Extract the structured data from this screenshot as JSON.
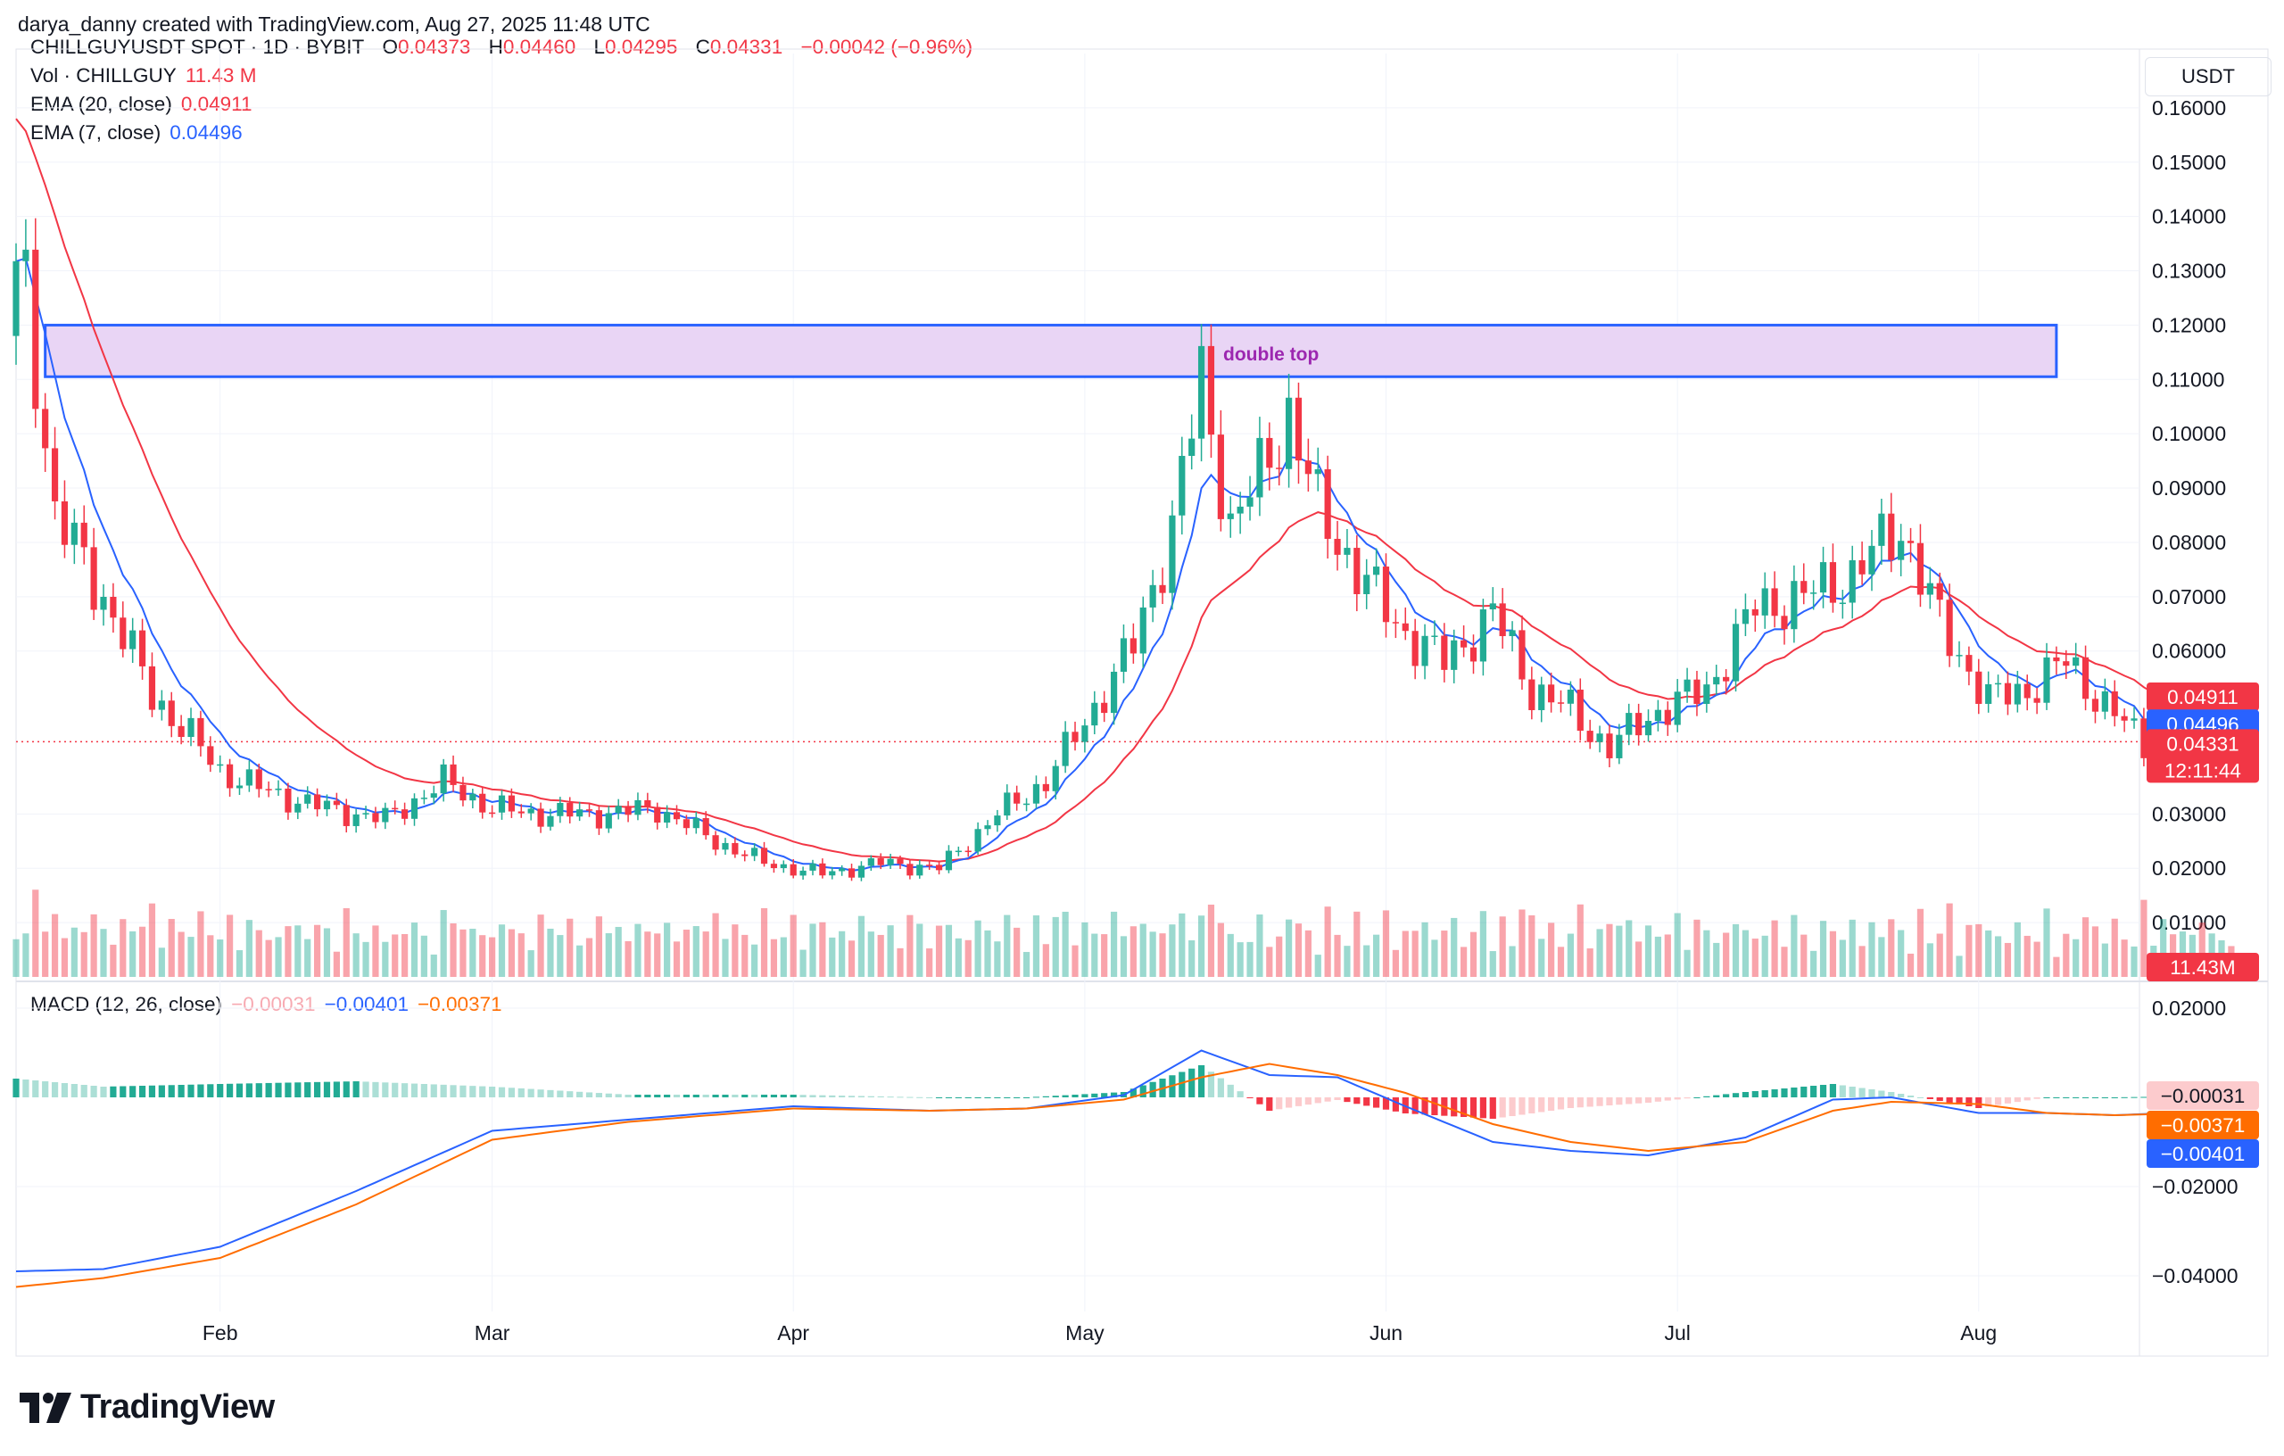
{
  "credit": "darya_danny created with TradingView.com, Aug 27, 2025 11:48 UTC",
  "legend": {
    "symbol": "CHILLGUYUSDT SPOT · 1D · BYBIT",
    "o_label": "O",
    "o": "0.04373",
    "h_label": "H",
    "h": "0.04460",
    "l_label": "L",
    "l": "0.04295",
    "c_label": "C",
    "c": "0.04331",
    "change": "−0.00042 (−0.96%)",
    "vol_label": "Vol · CHILLGUY",
    "vol": "11.43 M",
    "ema20_label": "EMA (20, close)",
    "ema20": "0.04911",
    "ema7_label": "EMA (7, close)",
    "ema7": "0.04496",
    "macd_label": "MACD (12, 26, close)",
    "macd_hist": "−0.00031",
    "macd_line": "−0.00401",
    "macd_signal": "−0.00371"
  },
  "unit_button": "USDT",
  "brand": "TradingView",
  "colors": {
    "up": "#22ab94",
    "down": "#f23645",
    "ema20": "#f23645",
    "ema7": "#2962ff",
    "macd": "#2962ff",
    "signal": "#ff6d00",
    "zone_fill": "#e9d5f5",
    "zone_border": "#2962ff",
    "annotation": "#9c27b0"
  },
  "chart_data": {
    "type": "candlestick",
    "x": [
      "2025-01-12",
      "2025-01-15",
      "2025-01-20",
      "2025-01-25",
      "2025-02-01",
      "2025-02-06",
      "2025-02-12",
      "2025-02-18",
      "2025-02-24",
      "2025-03-01",
      "2025-03-06",
      "2025-03-12",
      "2025-03-18",
      "2025-03-24",
      "2025-03-29",
      "2025-04-04",
      "2025-04-10",
      "2025-04-16",
      "2025-04-22",
      "2025-04-27",
      "2025-05-01",
      "2025-05-06",
      "2025-05-10",
      "2025-05-13",
      "2025-05-16",
      "2025-05-19",
      "2025-05-22",
      "2025-05-25",
      "2025-05-29",
      "2025-06-02",
      "2025-06-07",
      "2025-06-12",
      "2025-06-16",
      "2025-06-20",
      "2025-06-24",
      "2025-06-28",
      "2025-07-04",
      "2025-07-09",
      "2025-07-14",
      "2025-07-19",
      "2025-07-24",
      "2025-07-28",
      "2025-08-02",
      "2025-08-06",
      "2025-08-10",
      "2025-08-14",
      "2025-08-18",
      "2025-08-22",
      "2025-08-27"
    ],
    "close": [
      0.128,
      0.085,
      0.07,
      0.052,
      0.038,
      0.034,
      0.031,
      0.029,
      0.036,
      0.031,
      0.03,
      0.03,
      0.031,
      0.025,
      0.021,
      0.019,
      0.021,
      0.02,
      0.03,
      0.036,
      0.047,
      0.061,
      0.083,
      0.11,
      0.083,
      0.092,
      0.104,
      0.086,
      0.075,
      0.065,
      0.058,
      0.067,
      0.053,
      0.049,
      0.042,
      0.048,
      0.053,
      0.068,
      0.07,
      0.074,
      0.083,
      0.065,
      0.051,
      0.053,
      0.058,
      0.05,
      0.043,
      0.048,
      0.04331
    ],
    "ema20_last": 0.04911,
    "ema7_last": 0.04496,
    "volume_last": "11.43M",
    "macd": {
      "macd_x": [
        "2025-01-11",
        "2025-01-20",
        "2025-02-01",
        "2025-02-15",
        "2025-03-01",
        "2025-03-15",
        "2025-04-01",
        "2025-04-15",
        "2025-04-25",
        "2025-05-05",
        "2025-05-13",
        "2025-05-20",
        "2025-05-27",
        "2025-06-03",
        "2025-06-12",
        "2025-06-20",
        "2025-06-28",
        "2025-07-08",
        "2025-07-17",
        "2025-07-23",
        "2025-08-01",
        "2025-08-08",
        "2025-08-15",
        "2025-08-22",
        "2025-08-27"
      ],
      "macd": [
        -0.039,
        -0.0385,
        -0.0335,
        -0.021,
        -0.0075,
        -0.005,
        -0.002,
        -0.003,
        -0.0025,
        0.0005,
        0.0105,
        0.005,
        0.0045,
        -0.002,
        -0.01,
        -0.012,
        -0.013,
        -0.009,
        -0.0005,
        -0.0,
        -0.0035,
        -0.0035,
        -0.004,
        -0.0034,
        -0.00401
      ],
      "signal": [
        -0.0425,
        -0.0405,
        -0.036,
        -0.024,
        -0.0095,
        -0.0055,
        -0.0025,
        -0.003,
        -0.0025,
        -0.0005,
        0.0045,
        0.0075,
        0.005,
        0.001,
        -0.006,
        -0.01,
        -0.012,
        -0.01,
        -0.003,
        -0.001,
        -0.0015,
        -0.0035,
        -0.004,
        -0.0036,
        -0.00371
      ]
    },
    "price_axis": {
      "ylim": [
        0.0,
        0.17
      ],
      "ticks": [
        "0.16000",
        "0.15000",
        "0.14000",
        "0.13000",
        "0.12000",
        "0.11000",
        "0.10000",
        "0.09000",
        "0.08000",
        "0.07000",
        "0.06000",
        "0.03000",
        "0.02000",
        "0.01000"
      ]
    },
    "macd_axis": {
      "ylim": [
        -0.048,
        0.024
      ],
      "ticks": [
        "0.02000",
        "−0.02000",
        "−0.04000"
      ]
    },
    "x_ticks": [
      {
        "label": "Feb",
        "date": "2025-02-01"
      },
      {
        "label": "Mar",
        "date": "2025-03-01"
      },
      {
        "label": "Apr",
        "date": "2025-04-01"
      },
      {
        "label": "May",
        "date": "2025-05-01"
      },
      {
        "label": "Jun",
        "date": "2025-06-01"
      },
      {
        "label": "Jul",
        "date": "2025-07-01"
      },
      {
        "label": "Aug",
        "date": "2025-08-01"
      }
    ],
    "badges": [
      {
        "text": "0.04911",
        "value": 0.04911,
        "color": "#f23645"
      },
      {
        "text": "0.04496",
        "value": 0.04496,
        "color": "#2962ff"
      },
      {
        "text": "0.04331",
        "value": 0.04331,
        "color": "#f23645",
        "countdown": "12:11:44"
      }
    ],
    "volume_badge": "11.43M",
    "macd_badges": [
      {
        "text": "−0.00031",
        "value": -0.00031,
        "color": "#fccbcd",
        "textColor": "#131722"
      },
      {
        "text": "−0.00371",
        "value": -0.00371,
        "color": "#ff6d00"
      },
      {
        "text": "−0.00401",
        "value": -0.00401,
        "color": "#2962ff"
      }
    ],
    "zone": {
      "from": "2025-01-14",
      "to": "2025-08-09",
      "low": 0.1105,
      "high": 0.12
    },
    "annotation": {
      "text": "double top",
      "date": "2025-05-18",
      "value": 0.1115
    },
    "current_price_line": 0.04331
  }
}
